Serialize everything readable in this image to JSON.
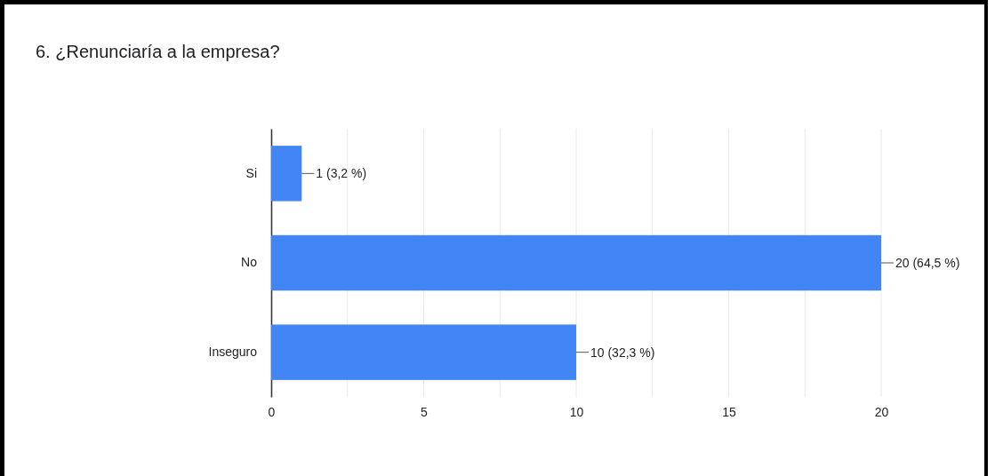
{
  "chart_data": {
    "type": "bar",
    "title": "6. ¿Renunciaría a la empresa?",
    "orientation": "horizontal",
    "categories": [
      "Si",
      "No",
      "Inseguro"
    ],
    "values": [
      1,
      20,
      10
    ],
    "color": "#4285f4",
    "value_labels": [
      "1 (3,2 %)",
      "20 (64,5 %)",
      "10 (32,3 %)"
    ],
    "xlim": [
      0,
      20
    ],
    "xticks": [
      0,
      {
        "value": 2.5,
        "label": null
      },
      5,
      {
        "value": 7.5,
        "label": null
      },
      10,
      {
        "value": 12.5,
        "label": null
      },
      15,
      {
        "value": 17.5,
        "label": null
      },
      20
    ],
    "grid": "x"
  }
}
